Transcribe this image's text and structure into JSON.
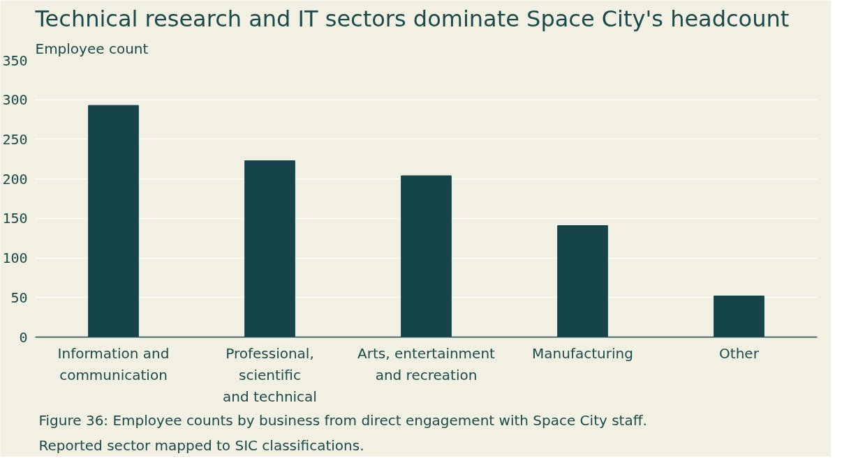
{
  "chart_data": {
    "type": "bar",
    "title": "Technical research and IT sectors dominate Space City's headcount",
    "ylabel": "Employee count",
    "categories": [
      "Information and\ncommunication",
      "Professional,\nscientific\nand technical",
      "Arts, entertainment\nand recreation",
      "Manufacturing",
      "Other"
    ],
    "values": [
      293,
      223,
      204,
      141,
      52
    ],
    "color": "#15444a",
    "ylim": [
      0,
      350
    ],
    "yticks": [
      0,
      50,
      100,
      150,
      200,
      250,
      300,
      350
    ],
    "grid": "y",
    "annotations": [
      "Figure 36: Employee counts by business from direct engagement with Space City staff.",
      "Reported sector mapped to SIC classifications."
    ]
  }
}
